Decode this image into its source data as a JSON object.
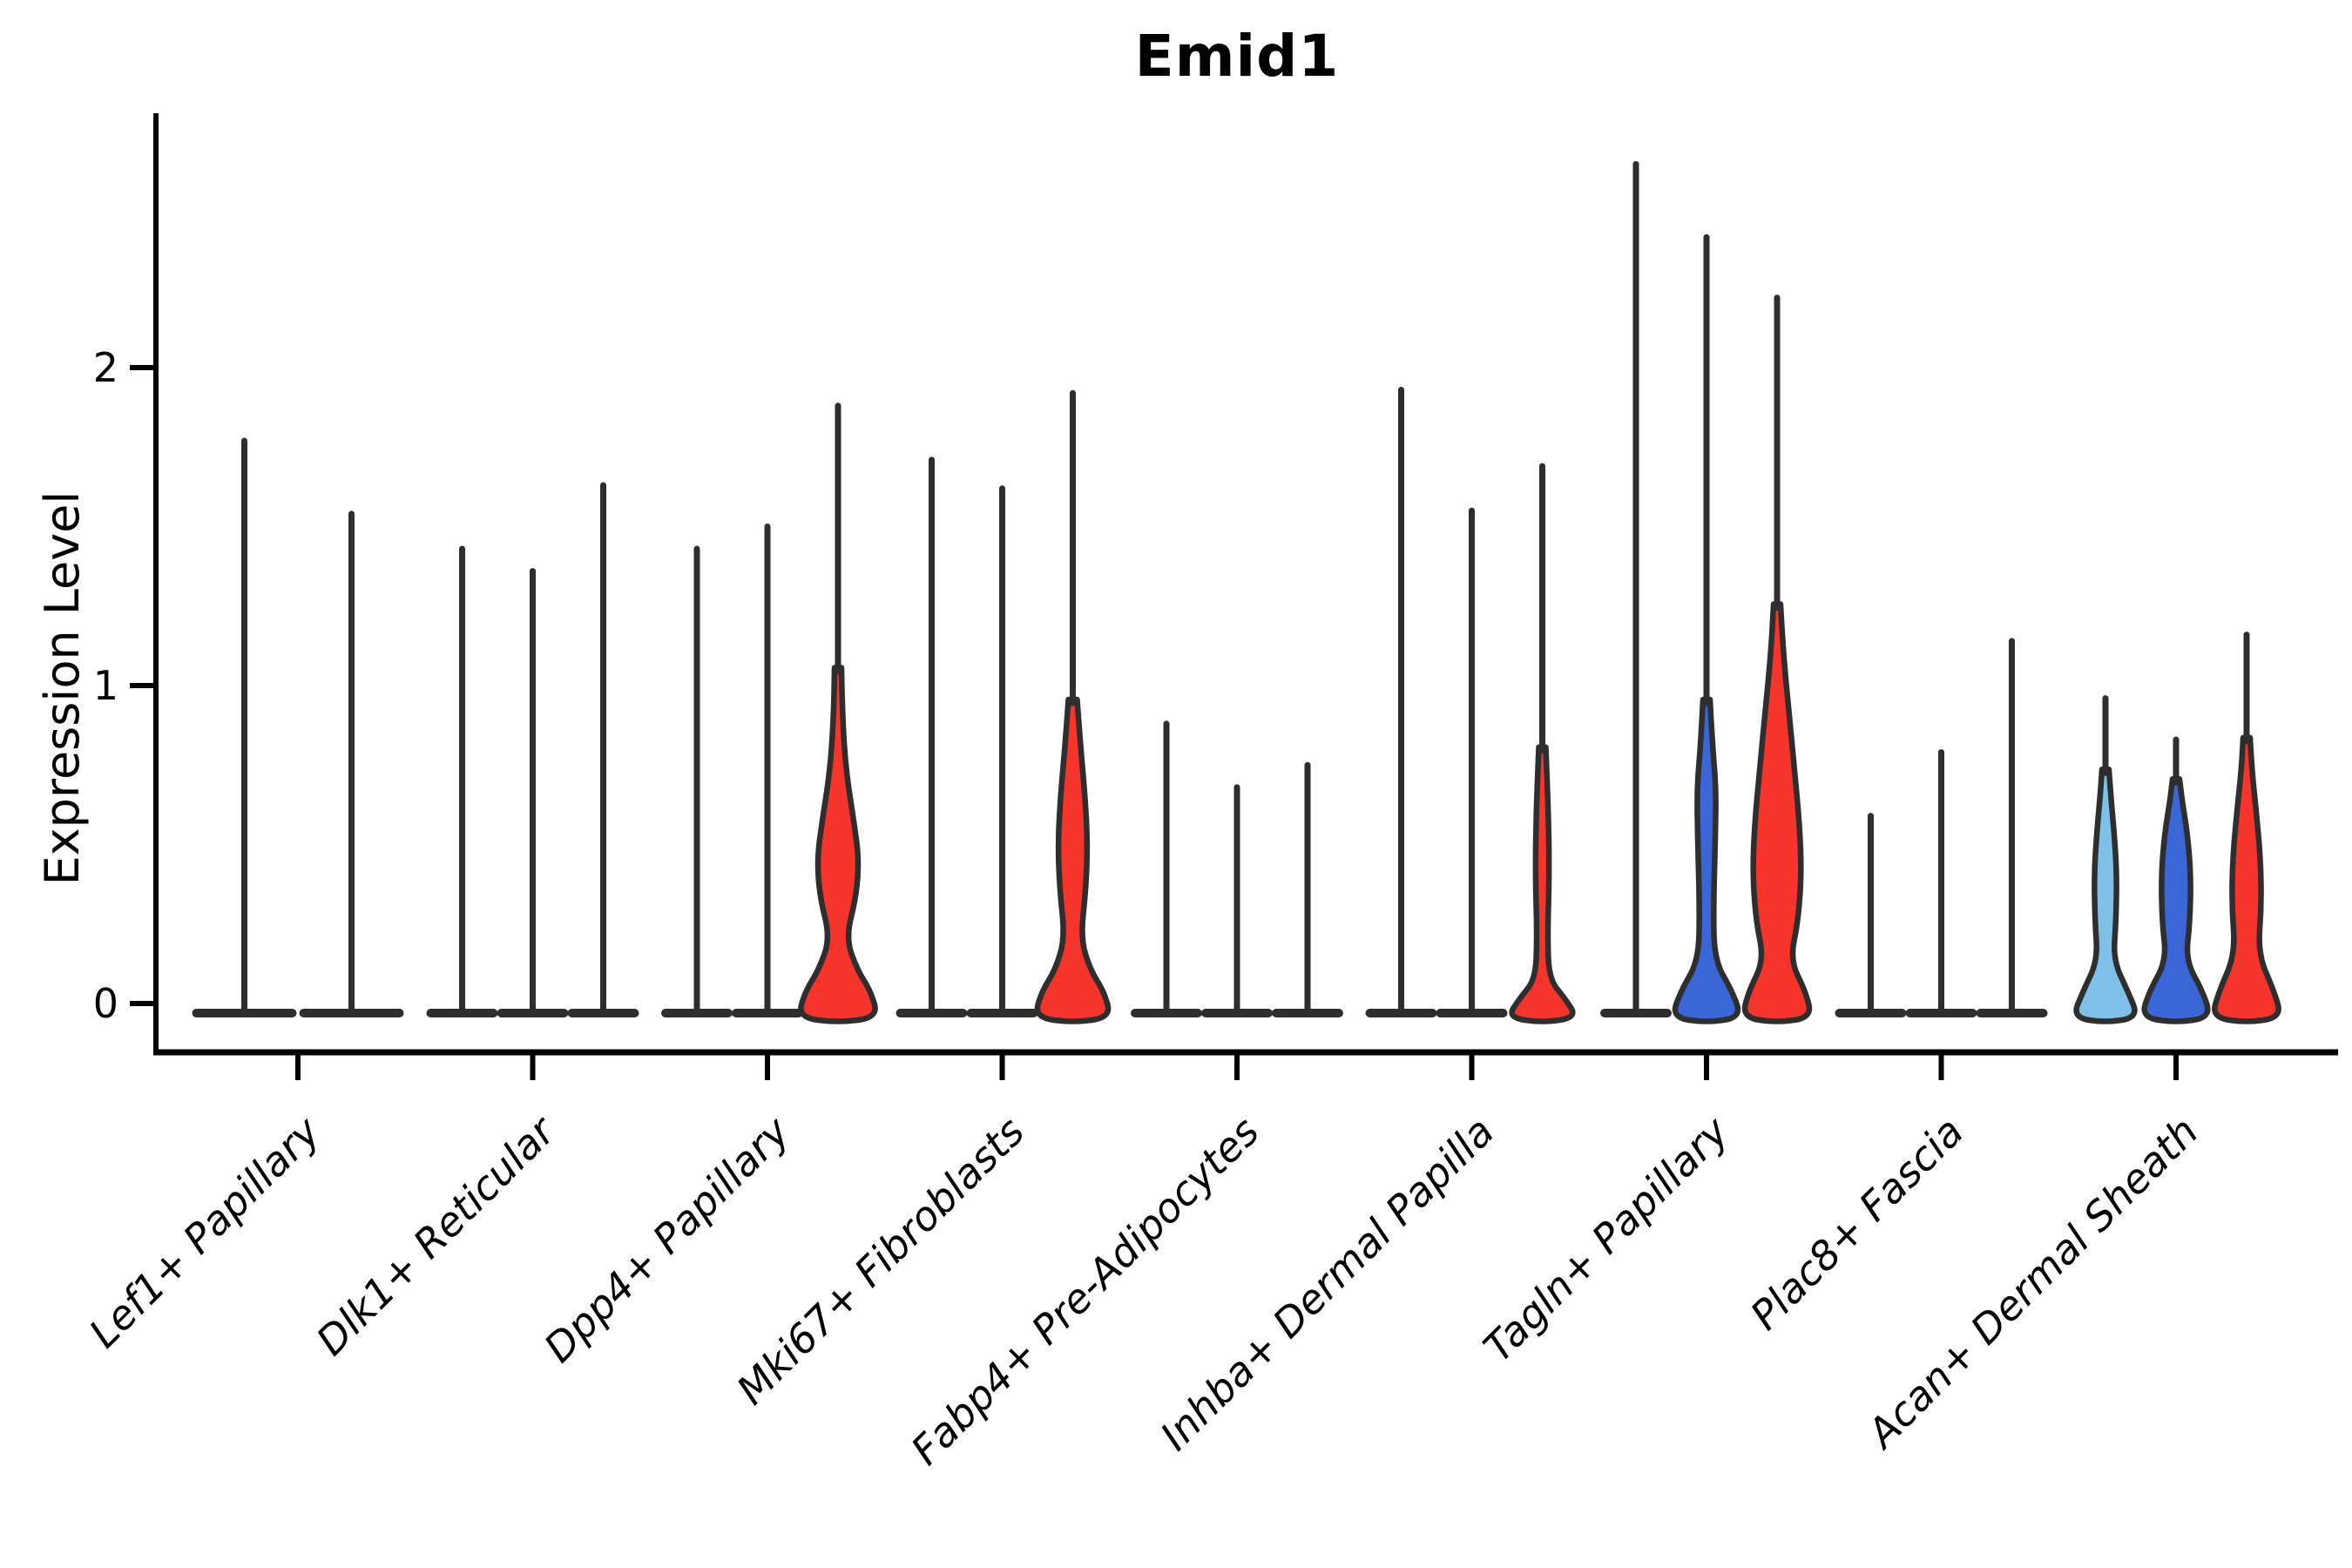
{
  "chart_data": {
    "type": "violin",
    "title": "Emid1",
    "ylabel": "Expression Level",
    "xlabel": "",
    "y_ticks": [
      0,
      1,
      2
    ],
    "ylim": [
      0,
      2.8
    ],
    "grid": false,
    "legend_position": "none",
    "colors": {
      "red": "#f5342c",
      "blue": "#3a66d8",
      "lightblue": "#7ec0e8",
      "stroke": "#2e2e2e",
      "axis": "#000000"
    },
    "note": "max = top of expression spike per violin (expression-level units); profile = [expression_value, half_width_px] outline for filled violin bodies",
    "categories": [
      "Lef1+ Papillary",
      "Dlk1+ Reticular",
      "Dpp4+ Papillary",
      "Mki67+ Fibroblasts",
      "Fabp4+ Pre-Adipocytes",
      "Inhba+ Dermal Papilla",
      "Tagln+ Papillary",
      "Plac8+ Fascia",
      "Acan+ Dermal Sheath"
    ],
    "groups": [
      {
        "category": "Lef1+ Papillary",
        "violins": [
          {
            "max": 1.77,
            "fill": null,
            "base_halfwidth": 60
          },
          {
            "max": 1.54,
            "fill": null,
            "base_halfwidth": 60
          }
        ]
      },
      {
        "category": "Dlk1+ Reticular",
        "violins": [
          {
            "max": 1.43,
            "fill": null
          },
          {
            "max": 1.36,
            "fill": null
          },
          {
            "max": 1.63,
            "fill": null
          }
        ]
      },
      {
        "category": "Dpp4+ Papillary",
        "violins": [
          {
            "max": 1.43,
            "fill": null
          },
          {
            "max": 1.5,
            "fill": null
          },
          {
            "max": 1.88,
            "fill": "red",
            "profile": [
              [
                0,
                46
              ],
              [
                0.08,
                38
              ],
              [
                0.15,
                22
              ],
              [
                0.25,
                9
              ],
              [
                0.38,
                21
              ],
              [
                0.5,
                24
              ],
              [
                0.62,
                18
              ],
              [
                0.78,
                9
              ],
              [
                0.95,
                5
              ],
              [
                1.1,
                4
              ]
            ]
          }
        ]
      },
      {
        "category": "Mki67+ Fibroblasts",
        "violins": [
          {
            "max": 1.71,
            "fill": null
          },
          {
            "max": 1.62,
            "fill": null
          },
          {
            "max": 1.92,
            "fill": "red",
            "profile": [
              [
                0,
                44
              ],
              [
                0.08,
                36
              ],
              [
                0.15,
                20
              ],
              [
                0.25,
                9
              ],
              [
                0.4,
                15
              ],
              [
                0.55,
                17
              ],
              [
                0.7,
                14
              ],
              [
                0.85,
                9
              ],
              [
                1.0,
                5
              ]
            ]
          }
        ]
      },
      {
        "category": "Fabp4+ Pre-Adipocytes",
        "violins": [
          {
            "max": 0.88,
            "fill": null
          },
          {
            "max": 0.68,
            "fill": null
          },
          {
            "max": 0.75,
            "fill": null
          }
        ]
      },
      {
        "category": "Inhba+ Dermal Papilla",
        "violins": [
          {
            "max": 1.93,
            "fill": null
          },
          {
            "max": 1.55,
            "fill": null
          },
          {
            "max": 1.69,
            "fill": "red",
            "profile": [
              [
                0,
                40
              ],
              [
                0.06,
                26
              ],
              [
                0.12,
                8
              ],
              [
                0.25,
                6
              ],
              [
                0.45,
                8
              ],
              [
                0.65,
                7
              ],
              [
                0.85,
                4
              ]
            ]
          }
        ]
      },
      {
        "category": "Tagln+ Papillary",
        "violins": [
          {
            "max": 2.64,
            "fill": null
          },
          {
            "max": 2.41,
            "fill": "blue",
            "profile": [
              [
                0,
                40
              ],
              [
                0.08,
                30
              ],
              [
                0.18,
                9
              ],
              [
                0.35,
                8
              ],
              [
                0.55,
                10
              ],
              [
                0.72,
                11
              ],
              [
                0.85,
                7
              ],
              [
                1.0,
                4
              ]
            ]
          },
          {
            "max": 2.22,
            "fill": "red",
            "profile": [
              [
                0,
                40
              ],
              [
                0.08,
                33
              ],
              [
                0.18,
                15
              ],
              [
                0.3,
                24
              ],
              [
                0.45,
                28
              ],
              [
                0.6,
                26
              ],
              [
                0.78,
                20
              ],
              [
                0.95,
                14
              ],
              [
                1.15,
                7
              ],
              [
                1.3,
                4
              ]
            ]
          }
        ]
      },
      {
        "category": "Plac8+ Fascia",
        "violins": [
          {
            "max": 0.59,
            "fill": null
          },
          {
            "max": 0.79,
            "fill": null
          },
          {
            "max": 1.14,
            "fill": null
          }
        ]
      },
      {
        "category": "Acan+ Dermal Sheath",
        "violins": [
          {
            "max": 0.96,
            "fill": "lightblue",
            "profile": [
              [
                0,
                38
              ],
              [
                0.08,
                26
              ],
              [
                0.18,
                9
              ],
              [
                0.3,
                12
              ],
              [
                0.45,
                13
              ],
              [
                0.58,
                10
              ],
              [
                0.7,
                6
              ],
              [
                0.78,
                4
              ]
            ]
          },
          {
            "max": 0.83,
            "fill": "blue",
            "profile": [
              [
                0,
                40
              ],
              [
                0.08,
                31
              ],
              [
                0.18,
                11
              ],
              [
                0.3,
                16
              ],
              [
                0.45,
                17
              ],
              [
                0.58,
                13
              ],
              [
                0.68,
                7
              ],
              [
                0.75,
                4
              ]
            ]
          },
          {
            "max": 1.16,
            "fill": "red",
            "profile": [
              [
                0,
                40
              ],
              [
                0.08,
                32
              ],
              [
                0.2,
                13
              ],
              [
                0.35,
                17
              ],
              [
                0.5,
                16
              ],
              [
                0.65,
                11
              ],
              [
                0.78,
                6
              ],
              [
                0.88,
                4
              ]
            ]
          }
        ]
      }
    ]
  }
}
